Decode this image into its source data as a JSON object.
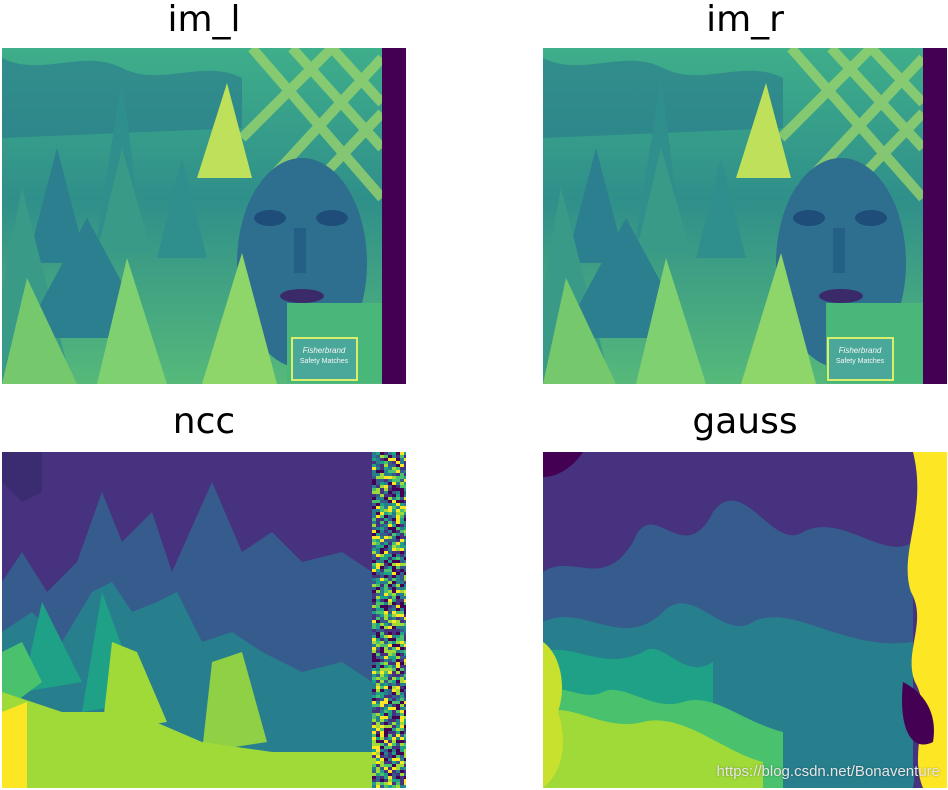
{
  "figure": {
    "panels": [
      {
        "id": "im_l",
        "title": "im_l"
      },
      {
        "id": "im_r",
        "title": "im_r"
      },
      {
        "id": "ncc",
        "title": "ncc"
      },
      {
        "id": "gauss",
        "title": "gauss"
      }
    ],
    "photo_label": {
      "brand": "Fisherbrand",
      "product": "Safety Matches"
    },
    "colormap": {
      "name": "viridis",
      "stops": [
        "#440154",
        "#46327e",
        "#365c8d",
        "#277f8e",
        "#1fa187",
        "#4ac16d",
        "#a0da39",
        "#fde725"
      ]
    }
  },
  "watermark": "https://blog.csdn.net/Bonaventure"
}
